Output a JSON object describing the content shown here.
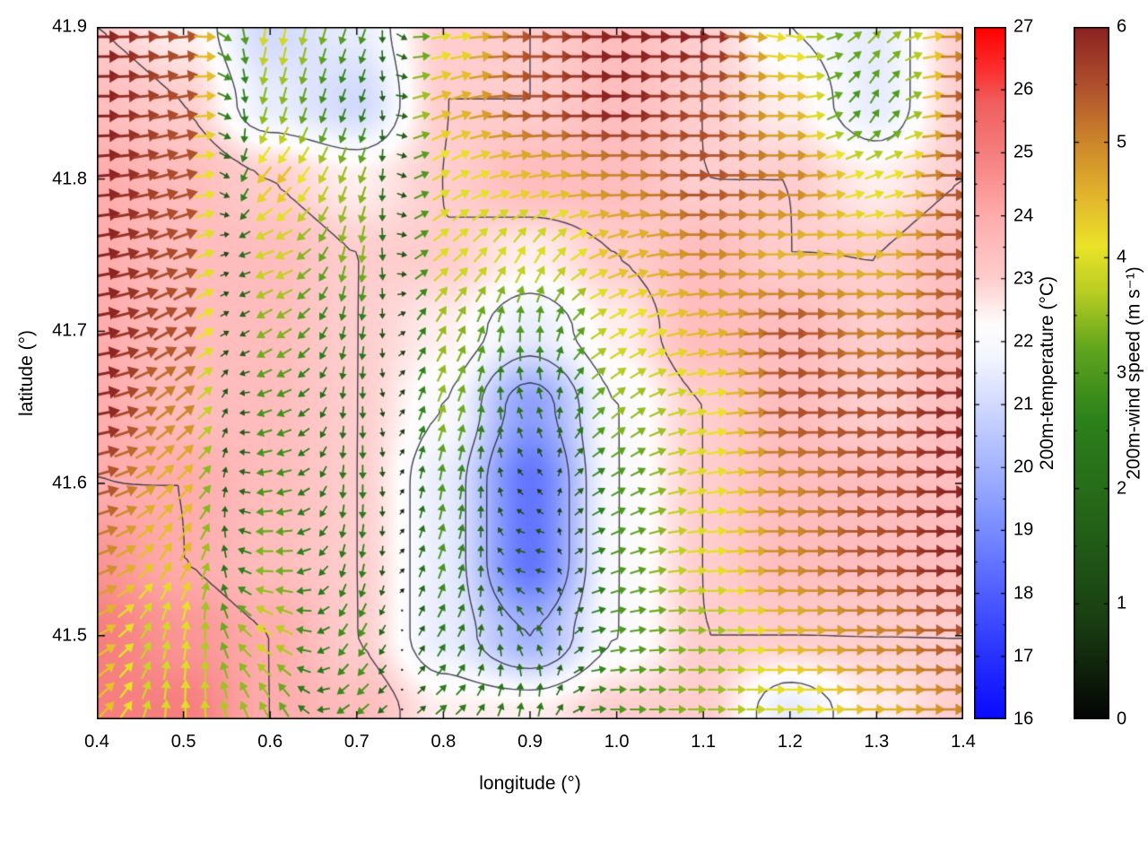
{
  "figure": {
    "background": "#ffffff",
    "axis_color": "#000000"
  },
  "chart_data": {
    "type": "heatmap",
    "subtype": "temperature-field-with-wind-vectors-and-contours",
    "xlabel": "longitude (°)",
    "ylabel": "latitude (°)",
    "x_range": [
      0.4,
      1.4
    ],
    "y_range": [
      41.445,
      41.9
    ],
    "x_ticks": [
      0.4,
      0.5,
      0.6,
      0.7,
      0.8,
      0.9,
      1.0,
      1.1,
      1.2,
      1.3,
      1.4
    ],
    "x_tick_labels": [
      "0.4",
      "0.5",
      "0.6",
      "0.7",
      "0.8",
      "0.9",
      "1.0",
      "1.1",
      "1.2",
      "1.3",
      "1.4"
    ],
    "y_ticks": [
      41.5,
      41.6,
      41.7,
      41.8,
      41.9
    ],
    "y_tick_labels": [
      "41.5",
      "41.6",
      "41.7",
      "41.8",
      "41.9"
    ],
    "grid_lons": [
      0.4,
      0.5,
      0.6,
      0.7,
      0.8,
      0.9,
      1.0,
      1.1,
      1.2,
      1.3,
      1.4
    ],
    "grid_lats": [
      41.9,
      41.85,
      41.8,
      41.75,
      41.7,
      41.65,
      41.6,
      41.55,
      41.5,
      41.45
    ],
    "temperature_grid": [
      [
        23.0,
        22.5,
        21.0,
        21.5,
        23.0,
        23.0,
        23.5,
        23.0,
        22.0,
        21.5,
        23.0
      ],
      [
        23.5,
        23.0,
        21.5,
        21.0,
        23.0,
        23.0,
        23.5,
        23.0,
        22.5,
        21.5,
        23.0
      ],
      [
        24.0,
        23.5,
        23.0,
        22.5,
        23.0,
        23.5,
        23.5,
        23.0,
        23.0,
        22.5,
        23.0
      ],
      [
        24.0,
        23.5,
        23.5,
        23.0,
        23.0,
        22.5,
        23.0,
        23.5,
        23.0,
        23.0,
        23.5
      ],
      [
        24.0,
        23.5,
        23.5,
        23.0,
        22.5,
        21.5,
        22.5,
        23.5,
        23.5,
        23.0,
        23.5
      ],
      [
        24.0,
        23.5,
        23.5,
        23.0,
        22.0,
        19.5,
        22.0,
        23.0,
        23.5,
        23.0,
        23.5
      ],
      [
        24.0,
        24.0,
        23.5,
        23.0,
        21.5,
        18.5,
        22.0,
        23.0,
        23.5,
        23.5,
        23.5
      ],
      [
        24.5,
        24.0,
        23.5,
        23.0,
        21.5,
        18.5,
        22.0,
        23.0,
        23.5,
        23.5,
        23.5
      ],
      [
        25.0,
        24.5,
        24.0,
        23.0,
        21.5,
        20.0,
        22.0,
        23.0,
        23.0,
        23.0,
        23.0
      ],
      [
        25.0,
        25.0,
        24.0,
        23.5,
        22.5,
        22.5,
        23.0,
        23.0,
        21.5,
        22.5,
        23.0
      ]
    ],
    "wind_speed_grid": [
      [
        6.0,
        5.5,
        4.0,
        3.0,
        4.0,
        5.5,
        6.0,
        6.0,
        4.0,
        3.5,
        5.0
      ],
      [
        6.0,
        5.5,
        3.5,
        2.5,
        4.5,
        5.5,
        6.0,
        5.5,
        4.5,
        3.0,
        5.5
      ],
      [
        6.0,
        5.5,
        4.5,
        3.5,
        4.0,
        4.5,
        5.0,
        5.5,
        5.0,
        4.0,
        5.5
      ],
      [
        6.0,
        5.5,
        4.0,
        3.5,
        4.0,
        4.0,
        4.5,
        5.0,
        4.5,
        4.5,
        5.5
      ],
      [
        6.0,
        5.5,
        3.5,
        2.5,
        3.5,
        3.0,
        4.0,
        4.5,
        5.5,
        5.0,
        5.5
      ],
      [
        6.0,
        5.0,
        3.0,
        2.0,
        3.5,
        2.0,
        3.5,
        4.0,
        5.5,
        5.5,
        6.0
      ],
      [
        5.5,
        4.5,
        3.0,
        2.5,
        3.0,
        0.8,
        3.0,
        4.0,
        5.0,
        5.5,
        6.0
      ],
      [
        5.0,
        4.5,
        3.5,
        2.5,
        3.0,
        1.5,
        3.0,
        4.0,
        5.0,
        5.5,
        6.0
      ],
      [
        4.5,
        4.0,
        4.0,
        3.0,
        2.5,
        2.0,
        3.0,
        3.5,
        4.5,
        5.0,
        5.5
      ],
      [
        4.5,
        4.0,
        3.5,
        3.0,
        2.5,
        2.5,
        3.0,
        3.5,
        4.0,
        4.5,
        5.0
      ]
    ],
    "wind_direction_deg_grid": [
      [
        0,
        5,
        260,
        250,
        10,
        0,
        0,
        0,
        -10,
        45,
        0
      ],
      [
        0,
        10,
        255,
        250,
        20,
        0,
        0,
        0,
        0,
        60,
        0
      ],
      [
        5,
        15,
        230,
        250,
        30,
        10,
        0,
        0,
        0,
        20,
        0
      ],
      [
        10,
        20,
        200,
        260,
        40,
        60,
        20,
        0,
        0,
        0,
        0
      ],
      [
        10,
        30,
        210,
        260,
        60,
        90,
        30,
        10,
        0,
        0,
        0
      ],
      [
        10,
        40,
        200,
        270,
        70,
        110,
        40,
        10,
        0,
        0,
        0
      ],
      [
        15,
        45,
        190,
        270,
        80,
        140,
        30,
        10,
        0,
        0,
        0
      ],
      [
        20,
        60,
        180,
        260,
        70,
        170,
        20,
        5,
        0,
        0,
        0
      ],
      [
        30,
        80,
        150,
        240,
        60,
        120,
        10,
        0,
        0,
        0,
        0
      ],
      [
        45,
        90,
        120,
        220,
        40,
        80,
        0,
        0,
        0,
        0,
        0
      ]
    ],
    "contour_levels": [
      20,
      21,
      22,
      23,
      24
    ],
    "contour_color": "#30303e",
    "temperature_colorbar": {
      "label": "200m-temperature (°C)",
      "range": [
        16,
        27
      ],
      "ticks": [
        16,
        17,
        18,
        19,
        20,
        21,
        22,
        23,
        24,
        25,
        26,
        27
      ],
      "tick_labels": [
        "16",
        "17",
        "18",
        "19",
        "20",
        "21",
        "22",
        "23",
        "24",
        "25",
        "26",
        "27"
      ],
      "stops": [
        [
          16,
          [
            10,
            10,
            255
          ]
        ],
        [
          17,
          [
            40,
            50,
            255
          ]
        ],
        [
          18,
          [
            80,
            95,
            255
          ]
        ],
        [
          19,
          [
            120,
            140,
            255
          ]
        ],
        [
          20,
          [
            165,
            180,
            255
          ]
        ],
        [
          21,
          [
            210,
            218,
            255
          ]
        ],
        [
          21.8,
          [
            245,
            247,
            255
          ]
        ],
        [
          22.3,
          [
            255,
            252,
            252
          ]
        ],
        [
          23,
          [
            255,
            205,
            205
          ]
        ],
        [
          24,
          [
            255,
            172,
            172
          ]
        ],
        [
          25,
          [
            246,
            126,
            126
          ]
        ],
        [
          25.8,
          [
            240,
            95,
            95
          ]
        ],
        [
          26.3,
          [
            252,
            50,
            50
          ]
        ],
        [
          27,
          [
            255,
            0,
            0
          ]
        ]
      ]
    },
    "wind_colorbar": {
      "label": "200m-wind speed (m s⁻¹)",
      "range": [
        0,
        6
      ],
      "ticks": [
        0,
        1,
        2,
        3,
        4,
        5,
        6
      ],
      "tick_labels": [
        "0",
        "1",
        "2",
        "3",
        "4",
        "5",
        "6"
      ],
      "stops": [
        [
          0,
          [
            5,
            5,
            5
          ]
        ],
        [
          0.8,
          [
            25,
            60,
            18
          ]
        ],
        [
          1.6,
          [
            35,
            95,
            25
          ]
        ],
        [
          2.6,
          [
            45,
            130,
            28
          ]
        ],
        [
          3.2,
          [
            95,
            165,
            30
          ]
        ],
        [
          3.7,
          [
            185,
            205,
            35
          ]
        ],
        [
          4.1,
          [
            235,
            228,
            40
          ]
        ],
        [
          4.5,
          [
            228,
            185,
            45
          ]
        ],
        [
          5,
          [
            205,
            135,
            42
          ]
        ],
        [
          5.5,
          [
            175,
            80,
            45
          ]
        ],
        [
          6,
          [
            139,
            35,
            35
          ]
        ]
      ]
    }
  }
}
